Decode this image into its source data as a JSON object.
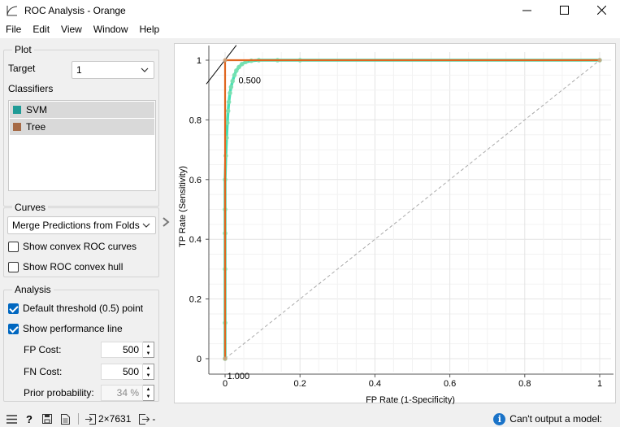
{
  "window": {
    "title": "ROC Analysis - Orange"
  },
  "menu": [
    "File",
    "Edit",
    "View",
    "Window",
    "Help"
  ],
  "plot_group": {
    "title": "Plot",
    "target_label": "Target",
    "target_value": "1",
    "classifiers_label": "Classifiers",
    "classifiers": [
      {
        "name": "SVM",
        "color": "#1f9b96"
      },
      {
        "name": "Tree",
        "color": "#a66b47"
      }
    ]
  },
  "curves_group": {
    "title": "Curves",
    "merge_value": "Merge Predictions from Folds",
    "convex_curves": "Show convex ROC curves",
    "convex_hull": "Show ROC convex hull"
  },
  "analysis_group": {
    "title": "Analysis",
    "default_threshold": "Default threshold (0.5) point",
    "performance_line": "Show performance line",
    "fp_cost_label": "FP Cost:",
    "fp_cost_value": "500",
    "fn_cost_label": "FN Cost:",
    "fn_cost_value": "500",
    "prior_label": "Prior probability:",
    "prior_value": "34 %"
  },
  "status": {
    "data_info": "2×7631",
    "output_info": "-",
    "message": "Can't output a model:"
  },
  "chart_data": {
    "type": "line",
    "xlabel": "FP Rate (1-Specificity)",
    "ylabel": "TP Rate (Sensitivity)",
    "xlim": [
      0,
      1
    ],
    "ylim": [
      0,
      1
    ],
    "xticks": [
      "0",
      "0.2",
      "0.4",
      "0.6",
      "0.8",
      "1"
    ],
    "yticks": [
      "0",
      "0.2",
      "0.4",
      "0.6",
      "0.8",
      "1"
    ],
    "grid": true,
    "series": [
      {
        "name": "SVM",
        "color": "#46e0b4",
        "points": [
          [
            0,
            0
          ],
          [
            0,
            0.12
          ],
          [
            0,
            0.3
          ],
          [
            0,
            0.42
          ],
          [
            0,
            0.5
          ],
          [
            0,
            0.6
          ],
          [
            0.002,
            0.68
          ],
          [
            0.004,
            0.74
          ],
          [
            0.006,
            0.79
          ],
          [
            0.008,
            0.83
          ],
          [
            0.01,
            0.86
          ],
          [
            0.013,
            0.89
          ],
          [
            0.016,
            0.91
          ],
          [
            0.02,
            0.93
          ],
          [
            0.025,
            0.95
          ],
          [
            0.03,
            0.965
          ],
          [
            0.037,
            0.977
          ],
          [
            0.045,
            0.987
          ],
          [
            0.055,
            0.994
          ],
          [
            0.07,
            0.998
          ],
          [
            0.09,
            1
          ],
          [
            0.14,
            1
          ],
          [
            0.2,
            1
          ],
          [
            1,
            1
          ]
        ]
      },
      {
        "name": "Tree",
        "color": "#e0661f",
        "points": [
          [
            0,
            0
          ],
          [
            0,
            1
          ],
          [
            1,
            1
          ]
        ]
      }
    ],
    "annotations": [
      {
        "text": "0.500",
        "x": 0.04,
        "y": 0.96
      },
      {
        "text": "1.000",
        "x": 0.01,
        "y": -0.03
      }
    ]
  }
}
